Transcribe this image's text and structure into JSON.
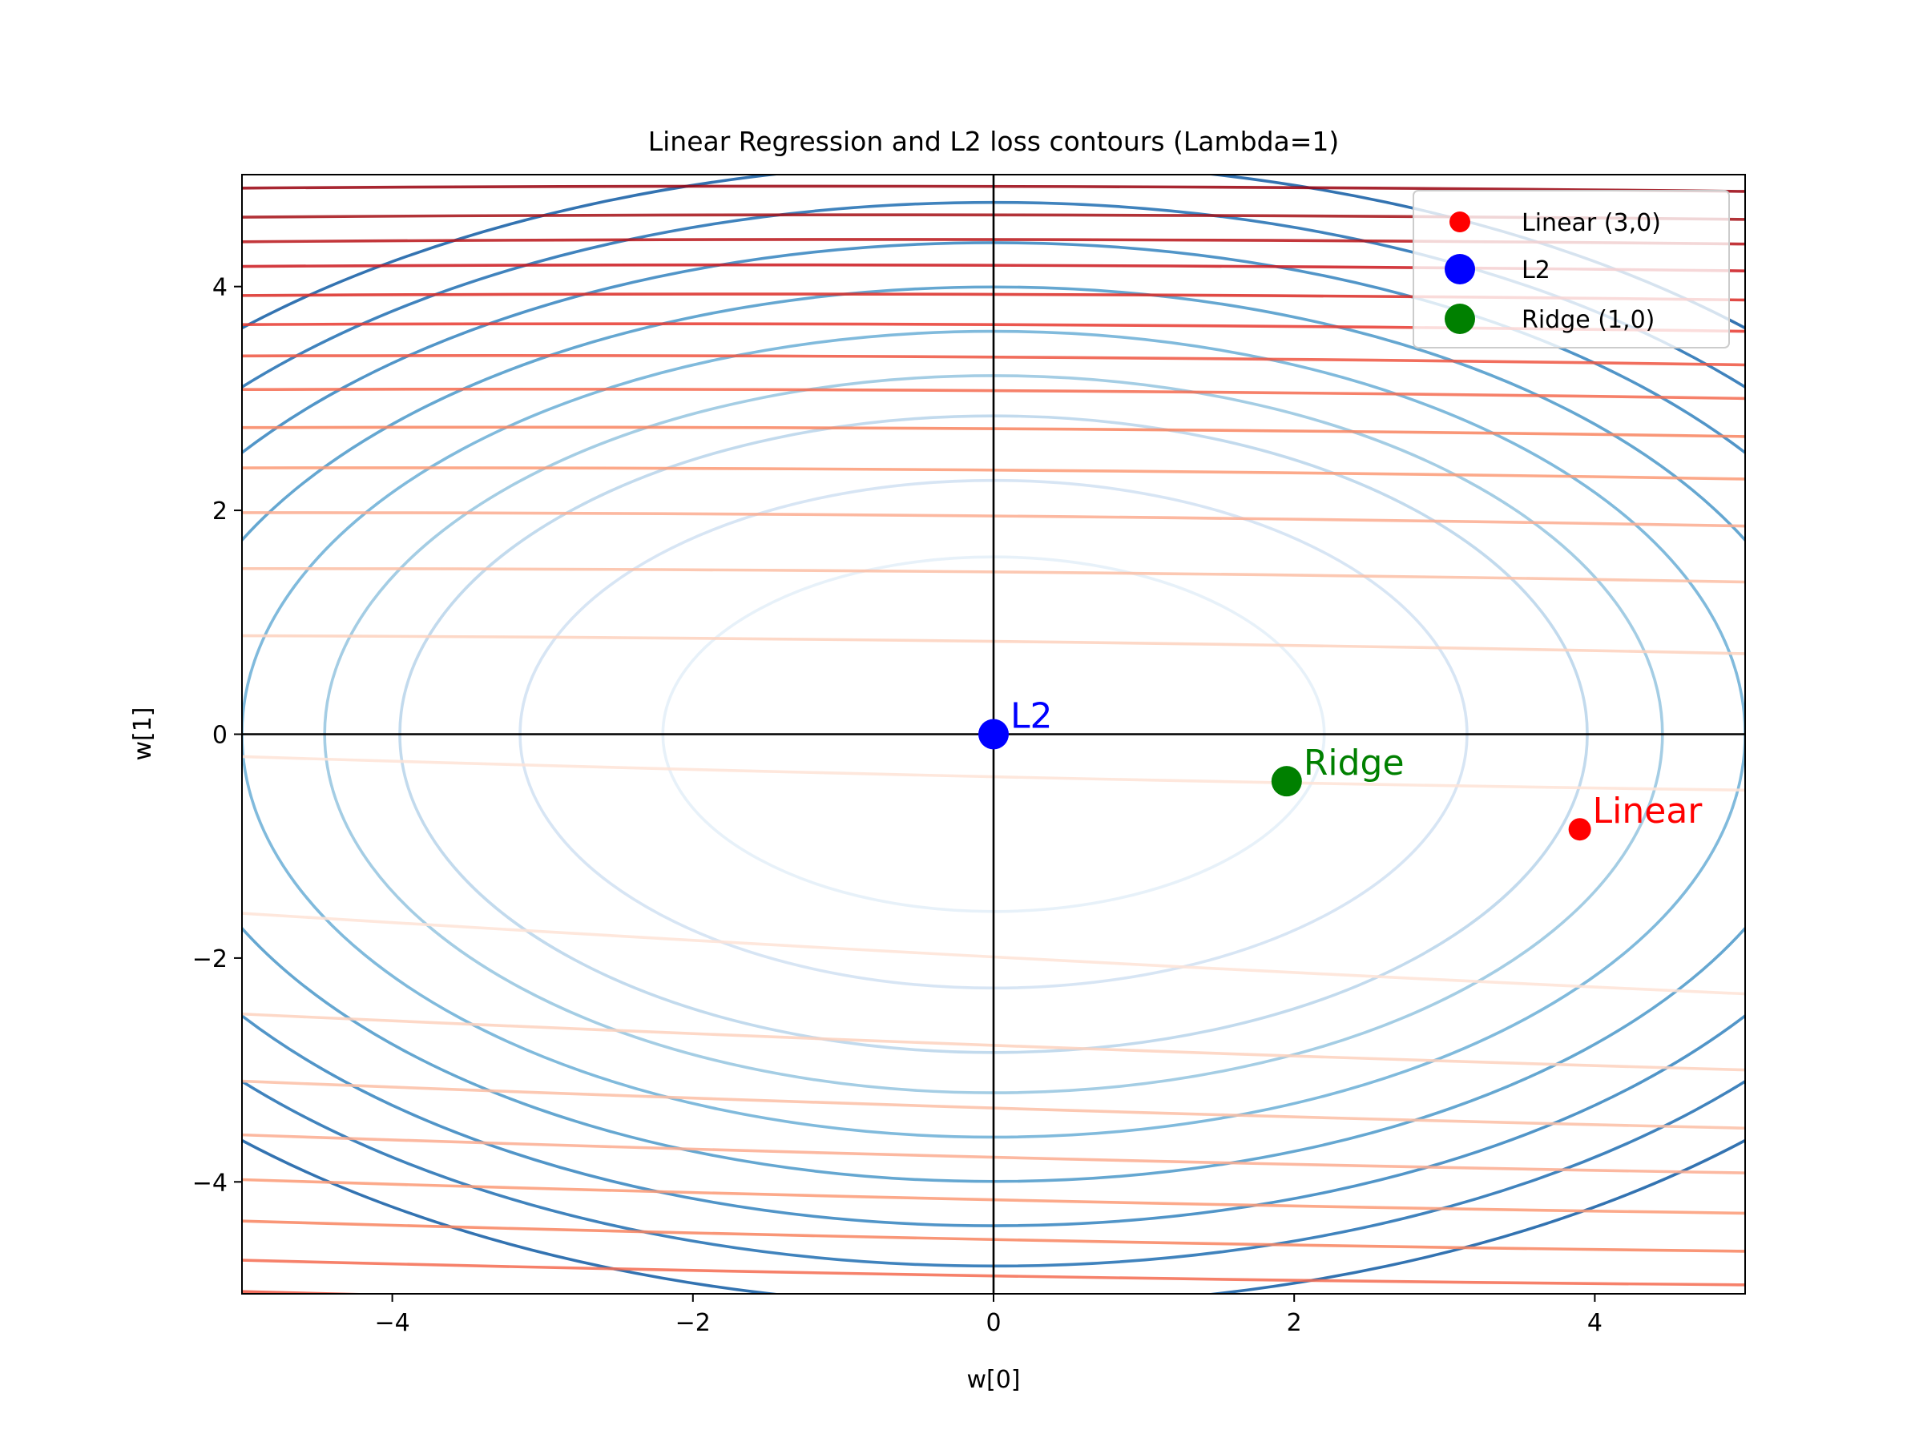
{
  "chart_data": {
    "type": "contour",
    "title": "Linear Regression and L2 loss contours (Lambda=1)",
    "xlabel": "w[0]",
    "ylabel": "w[1]",
    "xlim": [
      -5,
      5
    ],
    "ylim": [
      -5,
      5
    ],
    "x_ticks": [
      -4,
      -2,
      0,
      2,
      4
    ],
    "y_ticks": [
      -4,
      -2,
      0,
      2,
      4
    ],
    "x_tick_labels": [
      "−4",
      "−2",
      "0",
      "2",
      "4"
    ],
    "y_tick_labels": [
      "−4",
      "−2",
      "0",
      "2",
      "4"
    ],
    "grid": false,
    "reference_lines": {
      "x": 0,
      "y": 0,
      "color": "#000000"
    },
    "l2_contours": {
      "colormap": "Blues",
      "center": [
        0,
        0
      ],
      "x_radii": [
        2.2,
        3.15,
        3.95,
        4.45,
        5.0,
        5.55,
        6.1,
        6.6,
        7.1
      ],
      "aspect_y_over_x": 0.72,
      "colors": [
        "#e3eef8",
        "#d0e1f2",
        "#b7d4ea",
        "#94c4df",
        "#6aaed6",
        "#4a98c9",
        "#3282be",
        "#1f6db1",
        "#0f5aa3"
      ]
    },
    "linear_loss_contours": {
      "colormap": "Reds",
      "y_at_left_edge": [
        4.88,
        4.62,
        4.4,
        4.18,
        3.92,
        3.66,
        3.38,
        3.08,
        2.74,
        2.38,
        1.98,
        1.48,
        0.88,
        -0.2,
        -1.6,
        -2.5,
        -3.1,
        -3.58,
        -3.98,
        -4.35,
        -4.7,
        -4.98
      ],
      "y_at_right_edge": [
        4.85,
        4.6,
        4.38,
        4.14,
        3.88,
        3.6,
        3.3,
        3.0,
        2.66,
        2.28,
        1.86,
        1.36,
        0.72,
        -0.5,
        -2.32,
        -3.0,
        -3.52,
        -3.92,
        -4.28,
        -4.62,
        -4.92,
        -5.2
      ],
      "colors": [
        "#99000d",
        "#a50f15",
        "#b91419",
        "#cb181d",
        "#db2a25",
        "#e83a30",
        "#ef5541",
        "#f46b50",
        "#f8845f",
        "#fb9a76",
        "#fcac8f",
        "#fcbea5",
        "#fdd1bd",
        "#fee3d6",
        "#fee3d6",
        "#fdd1bd",
        "#fcbea5",
        "#fcac8f",
        "#fb9a76",
        "#f8845f",
        "#f46b50",
        "#ef5541"
      ]
    },
    "points": [
      {
        "name": "Linear",
        "x": 3.9,
        "y": -0.85,
        "color": "#ff0000",
        "size": "small"
      },
      {
        "name": "L2",
        "x": 0.0,
        "y": 0.0,
        "color": "#0000ff",
        "size": "large"
      },
      {
        "name": "Ridge",
        "x": 1.95,
        "y": -0.42,
        "color": "#008000",
        "size": "large"
      }
    ],
    "legend": {
      "placement": "top-right",
      "entries": [
        {
          "label": "Linear (3,0)",
          "color": "#ff0000"
        },
        {
          "label": "L2",
          "color": "#0000ff"
        },
        {
          "label": "Ridge (1,0)",
          "color": "#008000"
        }
      ]
    }
  }
}
